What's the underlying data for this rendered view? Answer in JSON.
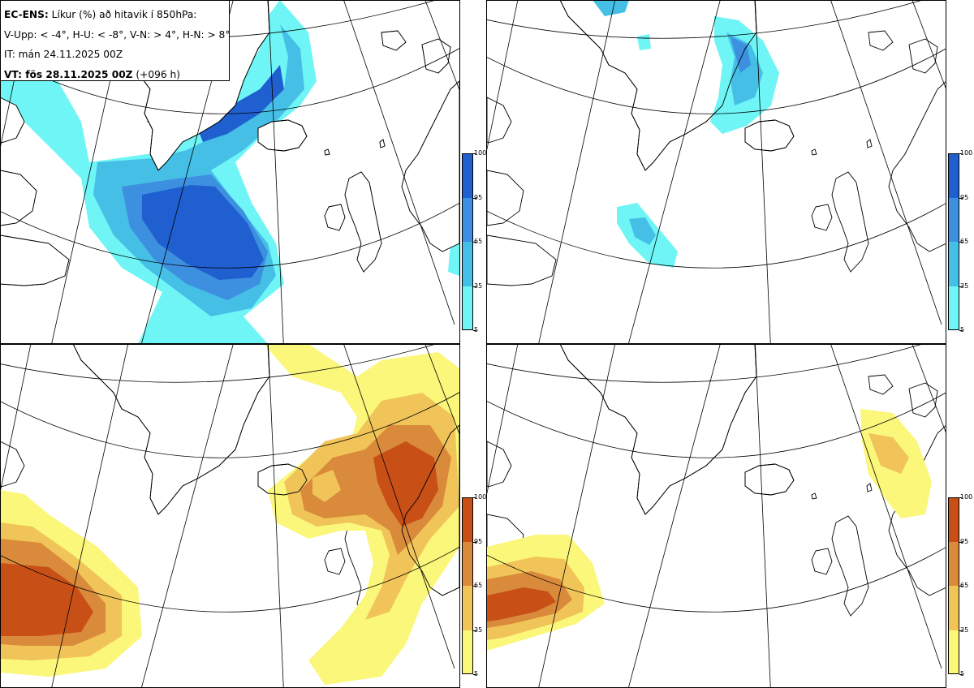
{
  "legend": {
    "model": "EC-ENS:",
    "title_rest": "Líkur (%) að hitavik í 850hPa:",
    "line2": "V-Upp: < -4°, H-U: < -8°, V-N: > 4°, H-N: > 8°",
    "line3": "IT: mán 24.11.2025 00Z",
    "line4_bold": "VT: fös 28.11.2025 00Z",
    "line4_rest": "(+096 h)"
  },
  "colorbar": {
    "ticks": [
      "100",
      "95",
      "65",
      "35",
      "5"
    ],
    "cold_colors": [
      "#1f5fcf",
      "#3d8fe0",
      "#45bfe6",
      "#6ff5f5"
    ],
    "warm_colors": [
      "#c85017",
      "#d98a3a",
      "#f0c458",
      "#fbf77a"
    ]
  },
  "panels": [
    {
      "id": "tl",
      "name": "cold-anomaly-4"
    },
    {
      "id": "tr",
      "name": "cold-anomaly-8"
    },
    {
      "id": "bl",
      "name": "warm-anomaly-4"
    },
    {
      "id": "br",
      "name": "warm-anomaly-8"
    }
  ],
  "map": {
    "land_fill": "#ffffff",
    "coast_color": "#000000"
  }
}
